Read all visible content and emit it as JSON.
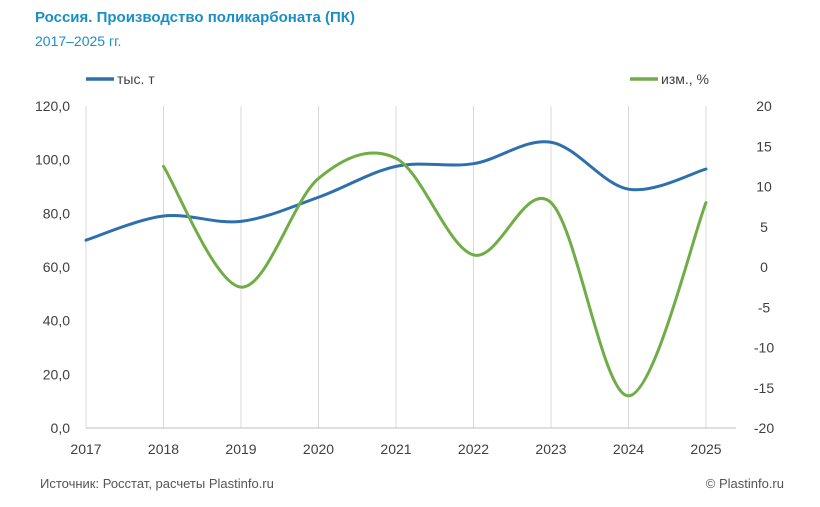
{
  "header": {
    "title": "Россия. Производство поликарбоната (ПК)",
    "subtitle": "2017–2025 гг."
  },
  "footer": {
    "source": "Источник: Росстат, расчеты  Plastinfo.ru",
    "copyright": "© Plastinfo.ru"
  },
  "colors": {
    "production": "#2e6fad",
    "change": "#70ad47",
    "text": "#404040",
    "grid": "#d9d9d9",
    "title": "#1a8fc4"
  },
  "chart_data": {
    "type": "line",
    "title": "Россия. Производство поликарбоната (ПК)",
    "subtitle": "2017–2025 гг.",
    "xlabel": "",
    "ylabel": "",
    "categories": [
      "2017",
      "2018",
      "2019",
      "2020",
      "2021",
      "2022",
      "2023",
      "2024",
      "2025"
    ],
    "series": [
      {
        "name": "тыс. т",
        "axis": "left",
        "color": "#2e6fad",
        "values": [
          70.0,
          79.0,
          77.0,
          86.0,
          97.5,
          98.5,
          106.5,
          89.0,
          96.5
        ]
      },
      {
        "name": "изм., %",
        "axis": "right",
        "color": "#70ad47",
        "values": [
          null,
          12.5,
          -2.5,
          11.0,
          13.5,
          1.5,
          8.0,
          -16.0,
          8.0
        ]
      }
    ],
    "y_left": {
      "ylim": [
        0,
        120
      ],
      "ticks": [
        "0,0",
        "20,0",
        "40,0",
        "60,0",
        "80,0",
        "100,0",
        "120,0"
      ]
    },
    "y_right": {
      "ylim": [
        -20,
        20
      ],
      "ticks": [
        "-20",
        "-15",
        "-10",
        "-5",
        "0",
        "5",
        "10",
        "15",
        "20"
      ]
    },
    "grid": true,
    "legend": [
      {
        "label": "тыс. т",
        "position": "top-left"
      },
      {
        "label": "изм., %",
        "position": "top-right"
      }
    ]
  }
}
